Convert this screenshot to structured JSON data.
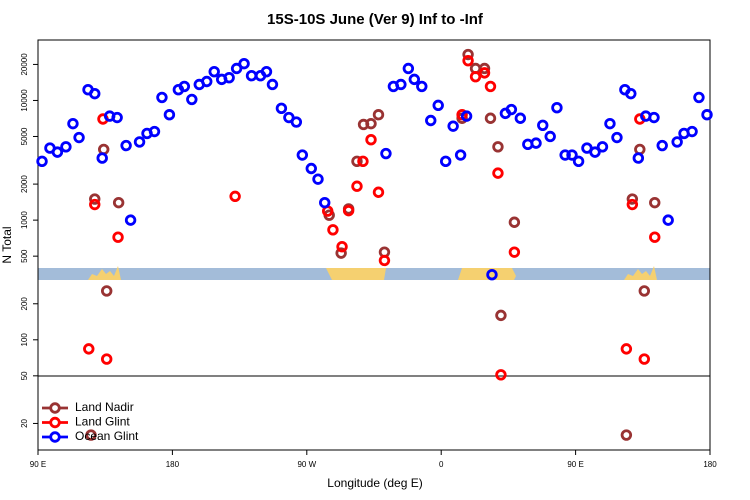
{
  "chart_data": {
    "type": "scatter",
    "title": "15S-10S June (Ver 9)   Inf to -Inf",
    "x_label": "Longitude (deg E)",
    "y_label": "N Total",
    "log_y": true,
    "legend": "lower left",
    "xlim": [
      90,
      540
    ],
    "xticks": [
      {
        "value": 90,
        "label": "90 E"
      },
      180,
      {
        "value": 270,
        "label": "90 W"
      },
      {
        "value": 360,
        "label": "0"
      },
      {
        "value": 450,
        "label": "90 E"
      },
      {
        "value": 540,
        "label": "180"
      }
    ],
    "ylim": [
      12,
      32000
    ],
    "yticks": [
      20,
      50,
      100,
      200,
      500,
      1000,
      2000,
      5000,
      10000,
      20000
    ],
    "series": [
      {
        "name": "Land Nadir",
        "color": "#993333",
        "x": [
          125.5,
          128,
          134,
          136,
          144,
          285,
          293,
          298,
          303.6,
          308,
          313,
          318,
          322,
          374,
          378,
          383,
          389,
          393,
          398,
          400,
          409,
          484,
          488,
          493,
          496,
          503
        ],
        "values": [
          16,
          1500,
          3900,
          256,
          1400,
          1100,
          530,
          1240,
          3100,
          6300,
          6400,
          7600,
          540,
          7100,
          24200,
          18500,
          18500,
          7100,
          4100,
          160,
          960,
          16,
          1500,
          3900,
          256,
          1400
        ]
      },
      {
        "name": "Land Glint",
        "color": "#ff0000",
        "x": [
          124,
          128,
          133.5,
          136,
          143.6,
          222,
          284,
          287.5,
          293.6,
          298,
          303.6,
          307.6,
          313,
          318,
          322,
          374,
          378,
          383,
          389,
          393,
          398,
          400,
          409,
          484,
          488,
          493,
          496,
          503
        ],
        "values": [
          84,
          1350,
          7000,
          69,
          720,
          1580,
          1190,
          830,
          600,
          1200,
          1920,
          3100,
          4700,
          1710,
          460,
          7600,
          21500,
          15800,
          17000,
          13100,
          2470,
          51,
          540,
          84,
          1350,
          7000,
          69,
          720
        ]
      },
      {
        "name": "Ocean Glint",
        "color": "#0000ff",
        "x": [
          92.7,
          98,
          103,
          108.7,
          113.4,
          117.5,
          123.5,
          128,
          133,
          138,
          143,
          149,
          152,
          158,
          163,
          168,
          173,
          178,
          184,
          188,
          193,
          198,
          203,
          208,
          213,
          218,
          223,
          228,
          233,
          239,
          243,
          247,
          253,
          258,
          263,
          267,
          273,
          277.5,
          282,
          323,
          328,
          333,
          338,
          342,
          347,
          353,
          358,
          363,
          368,
          373,
          377,
          394,
          403,
          407,
          413,
          418,
          423.5,
          428,
          433,
          437.5,
          443,
          447.6,
          452,
          457.6,
          463,
          468,
          473,
          477.7,
          483,
          487,
          492,
          497,
          502.5,
          508,
          512,
          518,
          522.6,
          528,
          532.6,
          538
        ],
        "values": [
          3100,
          4000,
          3700,
          4100,
          6400,
          4900,
          12300,
          11400,
          3300,
          7400,
          7200,
          4200,
          1000,
          4500,
          5300,
          5500,
          10600,
          7600,
          12300,
          13100,
          10200,
          13600,
          14400,
          17400,
          15000,
          15500,
          18500,
          20300,
          16100,
          16100,
          17400,
          13600,
          8600,
          7200,
          6600,
          3500,
          2700,
          2200,
          1400,
          3600,
          13100,
          13600,
          18500,
          15000,
          13100,
          6800,
          9100,
          3100,
          6100,
          3500,
          7400,
          350,
          7800,
          8400,
          7100,
          4300,
          4400,
          6200,
          5000,
          8700,
          3500,
          3500,
          3100,
          4000,
          3700,
          4100,
          6400,
          4900,
          12300,
          11400,
          3300,
          7400,
          7200,
          4200,
          1000,
          4500,
          5300,
          5500,
          10600,
          7600
        ]
      }
    ]
  }
}
